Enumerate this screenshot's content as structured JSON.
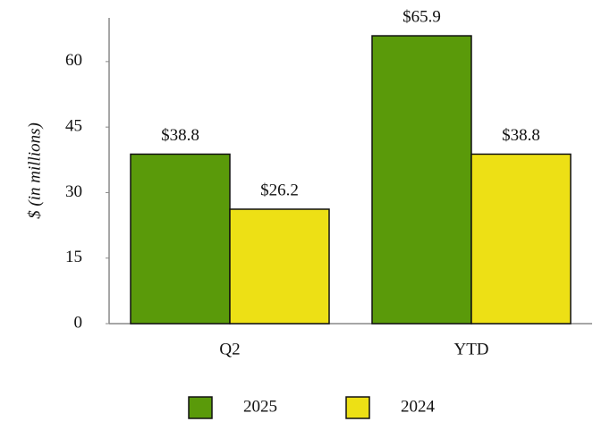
{
  "chart_data": {
    "type": "bar",
    "y_label": "$ (in millions)",
    "categories": [
      "Q2",
      "YTD"
    ],
    "series": [
      {
        "name": "2025",
        "color": "#5a9a0a",
        "values": [
          38.8,
          65.9
        ],
        "value_labels": [
          "$38.8",
          "$65.9"
        ]
      },
      {
        "name": "2024",
        "color": "#ede015",
        "values": [
          26.2,
          38.8
        ],
        "value_labels": [
          "$26.2",
          "$38.8"
        ]
      }
    ],
    "ylim": [
      0,
      70
    ],
    "yticks": [
      0,
      15,
      30,
      45,
      60
    ],
    "legend": "bottom"
  }
}
